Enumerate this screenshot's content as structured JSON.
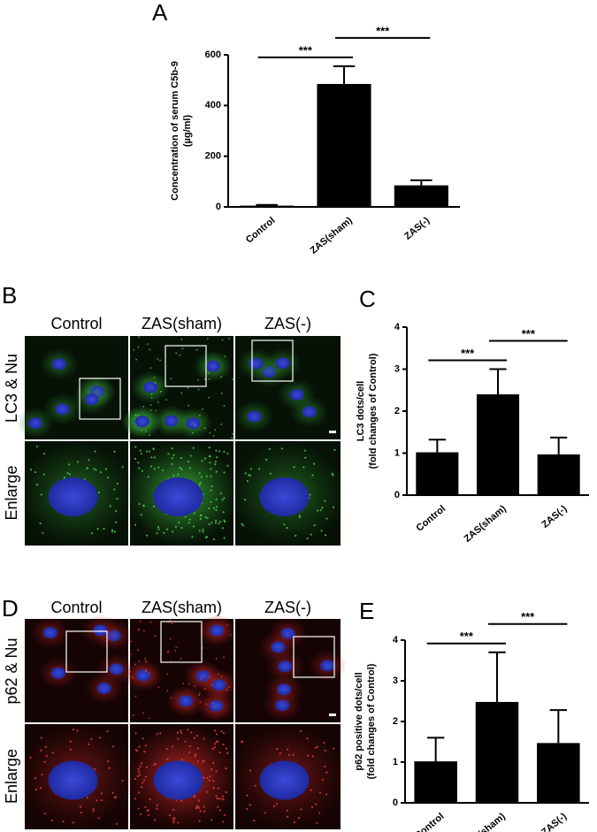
{
  "chart_data": [
    {
      "type": "bar",
      "panel_label": "A",
      "ylabel": [
        "Concentration of serum C5b-9",
        "(µg/ml)"
      ],
      "categories": [
        "Control",
        "ZAS(sham)",
        "ZAS(-)"
      ],
      "values": [
        5,
        485,
        85
      ],
      "errors": [
        3,
        70,
        20
      ],
      "color": "#000000",
      "ylim": [
        0,
        600
      ],
      "yticks": [
        0,
        200,
        400,
        600
      ],
      "significance": [
        {
          "between": [
            "Control",
            "ZAS(sham)"
          ],
          "label": "***"
        },
        {
          "between": [
            "ZAS(sham)",
            "ZAS(-)"
          ],
          "label": "***"
        }
      ]
    },
    {
      "type": "bar",
      "panel_label": "C",
      "ylabel": [
        "LC3 dots/cell",
        "(fold changes of Control)"
      ],
      "categories": [
        "Control",
        "ZAS(sham)",
        "ZAS(-)"
      ],
      "values": [
        1.02,
        2.4,
        0.97
      ],
      "errors": [
        0.3,
        0.6,
        0.4
      ],
      "color": "#000000",
      "ylim": [
        0,
        4
      ],
      "yticks": [
        0,
        1,
        2,
        3,
        4
      ],
      "significance": [
        {
          "between": [
            "Control",
            "ZAS(sham)"
          ],
          "label": "***"
        },
        {
          "between": [
            "ZAS(sham)",
            "ZAS(-)"
          ],
          "label": "***"
        }
      ]
    },
    {
      "type": "bar",
      "panel_label": "E",
      "ylabel": [
        "p62 positive dots/cell",
        "(fold changes of Control)"
      ],
      "categories": [
        "Control",
        "ZAS(sham)",
        "ZAS(-)"
      ],
      "values": [
        1.02,
        2.48,
        1.47
      ],
      "errors": [
        0.58,
        1.22,
        0.81
      ],
      "color": "#000000",
      "ylim": [
        0,
        4
      ],
      "yticks": [
        0,
        1,
        2,
        3,
        4
      ],
      "significance": [
        {
          "between": [
            "Control",
            "ZAS(sham)"
          ],
          "label": "***"
        },
        {
          "between": [
            "ZAS(sham)",
            "ZAS(-)"
          ],
          "label": "***"
        }
      ]
    }
  ],
  "image_panels": [
    {
      "panel_label": "B",
      "columns": [
        "Control",
        "ZAS(sham)",
        "ZAS(-)"
      ],
      "rows": [
        "LC3 & Nu",
        "Enlarge"
      ]
    },
    {
      "panel_label": "D",
      "columns": [
        "Control",
        "ZAS(sham)",
        "ZAS(-)"
      ],
      "rows": [
        "p62 & Nu",
        "Enlarge"
      ]
    }
  ]
}
